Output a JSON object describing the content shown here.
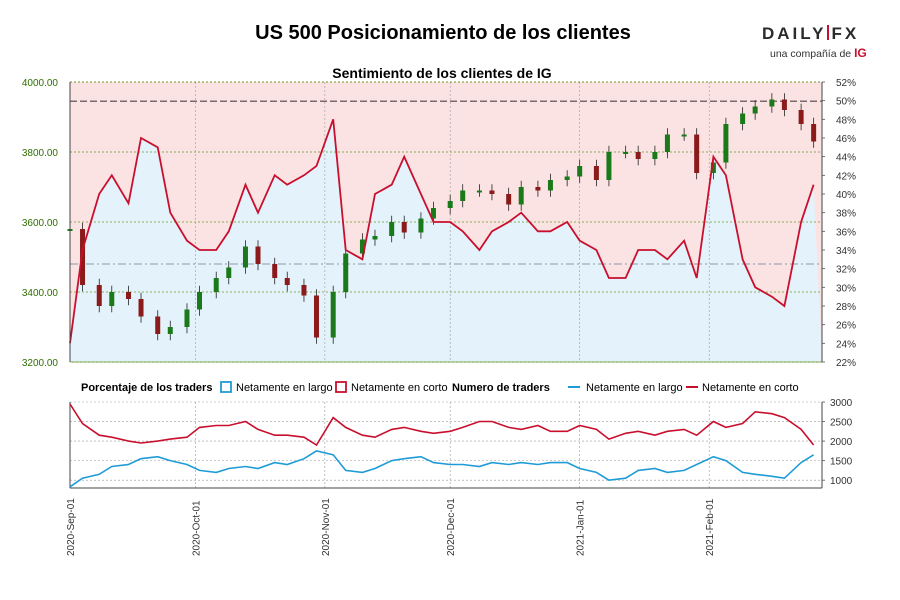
{
  "page": {
    "title": "US 500 Posicionamiento de los clientes",
    "logo": {
      "brand_left": "DAILY",
      "brand_right": "FX",
      "subtitle": "una compañía de",
      "subtitle_brand": "IG"
    }
  },
  "colors": {
    "long": "#1f9bd7",
    "short": "#c8102e",
    "long_fill": "#e4f2fb",
    "short_fill": "#fbe3e3",
    "candle_up": "#1a7a1a",
    "candle_down": "#8b1a1a",
    "grid": "#6a9a2a",
    "axis_text": "#2f6e00"
  },
  "chart_data": [
    {
      "type": "candlestick",
      "title": "Sentimiento de los clientes de IG",
      "y_left": {
        "range": [
          3200,
          4000
        ],
        "ticks": [
          "3200.00",
          "3400.00",
          "3600.00",
          "3800.00",
          "4000.00"
        ]
      },
      "y_right": {
        "range": [
          22,
          52
        ],
        "ticks": [
          "22%",
          "24%",
          "26%",
          "28%",
          "30%",
          "32%",
          "34%",
          "36%",
          "38%",
          "40%",
          "42%",
          "44%",
          "46%",
          "48%",
          "50%",
          "52%"
        ]
      },
      "x_start": "2020-09-01",
      "x_end": "2021-02-28",
      "x_ticks": [
        "2020-Sep-01",
        "2020-Oct-01",
        "2020-Nov-01",
        "2020-Dec-01",
        "2021-Jan-01",
        "2021-Feb-01"
      ],
      "reference_lines": {
        "price": 3945,
        "long_pct": 32.5
      },
      "series": [
        {
          "name": "Netamente en largo (%)",
          "x": [
            "2020-09-01",
            "2020-09-04",
            "2020-09-08",
            "2020-09-11",
            "2020-09-15",
            "2020-09-18",
            "2020-09-22",
            "2020-09-25",
            "2020-09-29",
            "2020-10-02",
            "2020-10-06",
            "2020-10-09",
            "2020-10-13",
            "2020-10-16",
            "2020-10-20",
            "2020-10-23",
            "2020-10-27",
            "2020-10-30",
            "2020-11-03",
            "2020-11-06",
            "2020-11-10",
            "2020-11-13",
            "2020-11-17",
            "2020-11-20",
            "2020-11-24",
            "2020-11-27",
            "2020-12-01",
            "2020-12-04",
            "2020-12-08",
            "2020-12-11",
            "2020-12-15",
            "2020-12-18",
            "2020-12-22",
            "2020-12-25",
            "2020-12-29",
            "2021-01-01",
            "2021-01-05",
            "2021-01-08",
            "2021-01-12",
            "2021-01-15",
            "2021-01-19",
            "2021-01-22",
            "2021-01-26",
            "2021-01-29",
            "2021-02-02",
            "2021-02-05",
            "2021-02-09",
            "2021-02-12",
            "2021-02-16",
            "2021-02-19",
            "2021-02-23",
            "2021-02-26"
          ],
          "values": [
            24,
            34,
            40,
            42,
            39,
            46,
            45,
            38,
            35,
            34,
            34,
            36,
            41,
            38,
            42,
            41,
            42,
            43,
            48,
            34,
            33,
            40,
            41,
            44,
            40,
            37,
            37,
            36,
            34,
            36,
            37,
            38,
            36,
            36,
            37,
            35,
            34,
            31,
            31,
            34,
            34,
            33,
            35,
            31,
            44,
            42,
            33,
            30,
            29,
            28,
            37,
            41
          ]
        },
        {
          "name": "US 500",
          "x": [
            "2020-09-01",
            "2020-09-04",
            "2020-09-08",
            "2020-09-11",
            "2020-09-15",
            "2020-09-18",
            "2020-09-22",
            "2020-09-25",
            "2020-09-29",
            "2020-10-02",
            "2020-10-06",
            "2020-10-09",
            "2020-10-13",
            "2020-10-16",
            "2020-10-20",
            "2020-10-23",
            "2020-10-27",
            "2020-10-30",
            "2020-11-03",
            "2020-11-06",
            "2020-11-10",
            "2020-11-13",
            "2020-11-17",
            "2020-11-20",
            "2020-11-24",
            "2020-11-27",
            "2020-12-01",
            "2020-12-04",
            "2020-12-08",
            "2020-12-11",
            "2020-12-15",
            "2020-12-18",
            "2020-12-22",
            "2020-12-25",
            "2020-12-29",
            "2021-01-01",
            "2021-01-05",
            "2021-01-08",
            "2021-01-12",
            "2021-01-15",
            "2021-01-19",
            "2021-01-22",
            "2021-01-26",
            "2021-01-29",
            "2021-02-02",
            "2021-02-05",
            "2021-02-09",
            "2021-02-12",
            "2021-02-16",
            "2021-02-19",
            "2021-02-23",
            "2021-02-26"
          ],
          "values": [
            3580,
            3420,
            3360,
            3400,
            3380,
            3330,
            3280,
            3300,
            3350,
            3400,
            3440,
            3470,
            3530,
            3480,
            3440,
            3420,
            3390,
            3270,
            3400,
            3510,
            3550,
            3560,
            3600,
            3570,
            3610,
            3640,
            3660,
            3690,
            3690,
            3680,
            3650,
            3700,
            3690,
            3720,
            3730,
            3760,
            3720,
            3800,
            3800,
            3780,
            3800,
            3850,
            3850,
            3740,
            3770,
            3880,
            3910,
            3930,
            3950,
            3920,
            3880,
            3830
          ]
        }
      ]
    },
    {
      "type": "line",
      "legend_left": {
        "title": "Porcentaje de los traders",
        "items": [
          "Netamente en largo",
          "Netamente en corto"
        ]
      },
      "legend_right": {
        "title": "Numero de traders",
        "items": [
          "Netamente en largo",
          "Netamente en corto"
        ]
      },
      "y_right": {
        "range": [
          800,
          3000
        ],
        "ticks": [
          "1000",
          "1500",
          "2000",
          "2500",
          "3000"
        ]
      },
      "series": [
        {
          "name": "Netamente en largo",
          "x": [
            "2020-09-01",
            "2020-09-04",
            "2020-09-08",
            "2020-09-11",
            "2020-09-15",
            "2020-09-18",
            "2020-09-22",
            "2020-09-25",
            "2020-09-29",
            "2020-10-02",
            "2020-10-06",
            "2020-10-09",
            "2020-10-13",
            "2020-10-16",
            "2020-10-20",
            "2020-10-23",
            "2020-10-27",
            "2020-10-30",
            "2020-11-03",
            "2020-11-06",
            "2020-11-10",
            "2020-11-13",
            "2020-11-17",
            "2020-11-20",
            "2020-11-24",
            "2020-11-27",
            "2020-12-01",
            "2020-12-04",
            "2020-12-08",
            "2020-12-11",
            "2020-12-15",
            "2020-12-18",
            "2020-12-22",
            "2020-12-25",
            "2020-12-29",
            "2021-01-01",
            "2021-01-05",
            "2021-01-08",
            "2021-01-12",
            "2021-01-15",
            "2021-01-19",
            "2021-01-22",
            "2021-01-26",
            "2021-01-29",
            "2021-02-02",
            "2021-02-05",
            "2021-02-09",
            "2021-02-12",
            "2021-02-16",
            "2021-02-19",
            "2021-02-23",
            "2021-02-26"
          ],
          "values": [
            830,
            1050,
            1150,
            1350,
            1400,
            1550,
            1600,
            1500,
            1400,
            1250,
            1200,
            1300,
            1350,
            1300,
            1450,
            1400,
            1550,
            1750,
            1650,
            1250,
            1200,
            1300,
            1500,
            1550,
            1600,
            1450,
            1400,
            1400,
            1350,
            1450,
            1400,
            1450,
            1400,
            1450,
            1450,
            1300,
            1200,
            1000,
            1050,
            1250,
            1300,
            1200,
            1250,
            1400,
            1600,
            1500,
            1200,
            1150,
            1100,
            1050,
            1450,
            1650
          ]
        },
        {
          "name": "Netamente en corto",
          "x": [
            "2020-09-01",
            "2020-09-04",
            "2020-09-08",
            "2020-09-11",
            "2020-09-15",
            "2020-09-18",
            "2020-09-22",
            "2020-09-25",
            "2020-09-29",
            "2020-10-02",
            "2020-10-06",
            "2020-10-09",
            "2020-10-13",
            "2020-10-16",
            "2020-10-20",
            "2020-10-23",
            "2020-10-27",
            "2020-10-30",
            "2020-11-03",
            "2020-11-06",
            "2020-11-10",
            "2020-11-13",
            "2020-11-17",
            "2020-11-20",
            "2020-11-24",
            "2020-11-27",
            "2020-12-01",
            "2020-12-04",
            "2020-12-08",
            "2020-12-11",
            "2020-12-15",
            "2020-12-18",
            "2020-12-22",
            "2020-12-25",
            "2020-12-29",
            "2021-01-01",
            "2021-01-05",
            "2021-01-08",
            "2021-01-12",
            "2021-01-15",
            "2021-01-19",
            "2021-01-22",
            "2021-01-26",
            "2021-01-29",
            "2021-02-02",
            "2021-02-05",
            "2021-02-09",
            "2021-02-12",
            "2021-02-16",
            "2021-02-19",
            "2021-02-23",
            "2021-02-26"
          ],
          "values": [
            2950,
            2450,
            2150,
            2100,
            2000,
            1950,
            2000,
            2050,
            2100,
            2350,
            2400,
            2400,
            2500,
            2300,
            2150,
            2150,
            2100,
            1900,
            2600,
            2350,
            2150,
            2100,
            2300,
            2350,
            2250,
            2200,
            2250,
            2350,
            2500,
            2500,
            2350,
            2300,
            2400,
            2250,
            2250,
            2400,
            2300,
            2050,
            2200,
            2250,
            2150,
            2250,
            2300,
            2150,
            2500,
            2350,
            2450,
            2750,
            2700,
            2600,
            2300,
            1900
          ]
        }
      ]
    }
  ]
}
